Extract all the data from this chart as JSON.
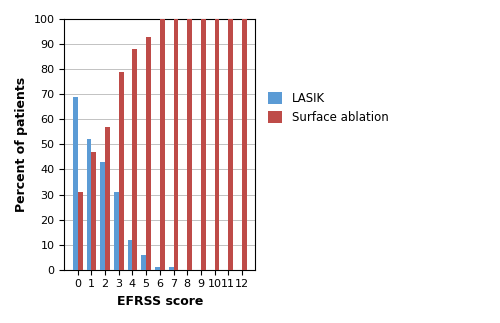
{
  "categories": [
    0,
    1,
    2,
    3,
    4,
    5,
    6,
    7,
    8,
    9,
    10,
    11,
    12
  ],
  "lasik": [
    69,
    52,
    43,
    31,
    12,
    6,
    1,
    1,
    0,
    0,
    0,
    0,
    0
  ],
  "surface_ablation": [
    31,
    47,
    57,
    79,
    88,
    93,
    100,
    100,
    100,
    100,
    100,
    100,
    100
  ],
  "lasik_color": "#5b9bd5",
  "surface_color": "#be4b48",
  "xlabel": "EFRSS score",
  "ylabel": "Percent of patients",
  "ylim": [
    0,
    100
  ],
  "yticks": [
    0,
    10,
    20,
    30,
    40,
    50,
    60,
    70,
    80,
    90,
    100
  ],
  "legend_lasik": "LASIK",
  "legend_surface": "Surface ablation",
  "bar_width": 0.35,
  "figure_width": 5.0,
  "figure_height": 3.23,
  "dpi": 100
}
